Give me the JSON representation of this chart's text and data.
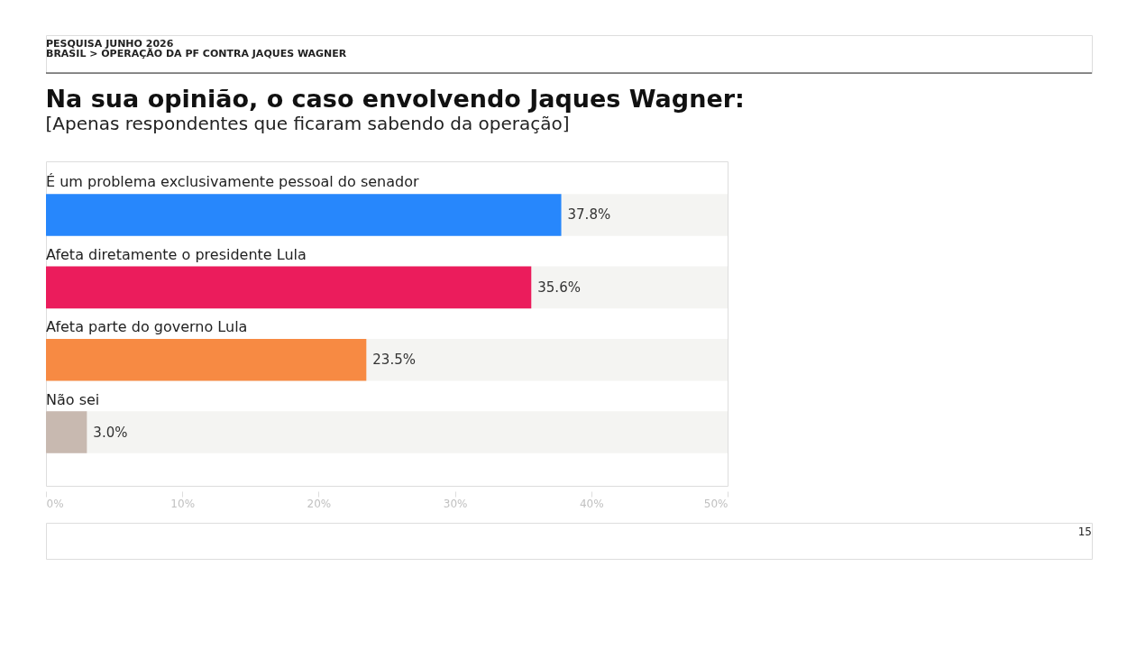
{
  "chart_data": {
    "type": "bar",
    "orientation": "horizontal",
    "title": "Na sua opinião, o caso envolvendo Jaques Wagner:",
    "subtitle": "[Apenas respondentes que ficaram sabendo da operação]",
    "categories": [
      "É um problema exclusivamente pessoal do senador",
      "Afeta diretamente o presidente Lula",
      "Afeta parte do governo Lula",
      "Não sei"
    ],
    "values": [
      37.8,
      35.6,
      23.5,
      3.0
    ],
    "colors": [
      "#2787fc",
      "#eb1c5c",
      "#f78a43",
      "#c8b9b0"
    ],
    "value_labels": [
      "37.8%",
      "35.6%",
      "23.5%",
      "3.0%"
    ],
    "xlim": [
      0,
      50
    ],
    "xticks": [
      {
        "value": 0,
        "label": "0%"
      },
      {
        "value": 10,
        "label": "10%"
      },
      {
        "value": 20,
        "label": "20%"
      },
      {
        "value": 30,
        "label": "30%"
      },
      {
        "value": 40,
        "label": "40%"
      },
      {
        "value": 50,
        "label": "50%"
      }
    ],
    "grid": false,
    "legend": false,
    "annotations": [
      "PESQUISA JUNHO 2026",
      "BRASIL > OPERAÇÃO DA PF CONTRA JAQUES WAGNER",
      "15"
    ]
  }
}
